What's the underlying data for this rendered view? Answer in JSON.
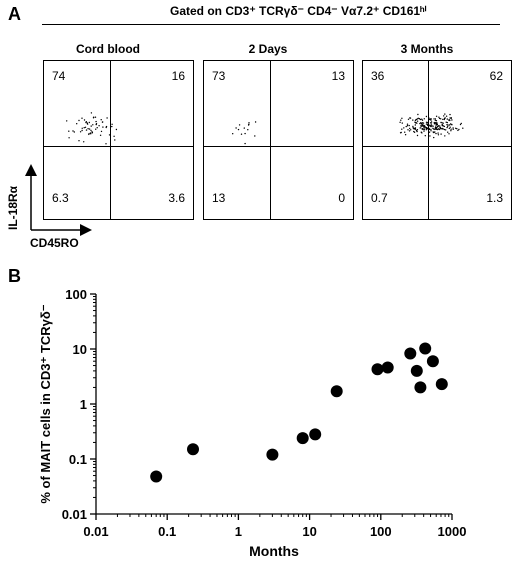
{
  "panel_a": {
    "letter": "A",
    "gate_title": "Gated on CD3⁺ TCRγδ⁻ CD4⁻ Vα7.2⁺ CD161ʰⁱ",
    "y_axis_label": "IL-18Rα",
    "x_axis_label": "CD45RO",
    "plots": [
      {
        "title": "Cord blood",
        "q_ul": "74",
        "q_ur": "16",
        "q_ll": "6.3",
        "q_lr": "3.6"
      },
      {
        "title": "2 Days",
        "q_ul": "73",
        "q_ur": "13",
        "q_ll": "13",
        "q_lr": "0"
      },
      {
        "title": "3 Months",
        "q_ul": "36",
        "q_ur": "62",
        "q_ll": "0.7",
        "q_lr": "1.3"
      }
    ]
  },
  "panel_b": {
    "letter": "B"
  },
  "chart_data": [
    {
      "type": "scatter",
      "title": "",
      "xlabel": "Months",
      "ylabel": "% of MAIT cells in CD3⁺ TCRγδ⁻",
      "xscale": "log",
      "yscale": "log",
      "xlim": [
        0.01,
        1000
      ],
      "ylim": [
        0.01,
        100
      ],
      "x_ticks": [
        "0.01",
        "0.1",
        "1",
        "10",
        "100",
        "1000"
      ],
      "y_ticks": [
        "0.01",
        "0.1",
        "1",
        "10",
        "100"
      ],
      "grid": false,
      "legend": "none",
      "marker_color": "#000000",
      "points": [
        {
          "x": 0.07,
          "y": 0.048
        },
        {
          "x": 0.23,
          "y": 0.15
        },
        {
          "x": 3,
          "y": 0.12
        },
        {
          "x": 8,
          "y": 0.24
        },
        {
          "x": 12,
          "y": 0.28
        },
        {
          "x": 24,
          "y": 1.7
        },
        {
          "x": 90,
          "y": 4.3
        },
        {
          "x": 125,
          "y": 4.6
        },
        {
          "x": 260,
          "y": 8.3
        },
        {
          "x": 320,
          "y": 4.0
        },
        {
          "x": 360,
          "y": 2.0
        },
        {
          "x": 420,
          "y": 10.2
        },
        {
          "x": 540,
          "y": 6.0
        },
        {
          "x": 720,
          "y": 2.3
        }
      ]
    }
  ]
}
